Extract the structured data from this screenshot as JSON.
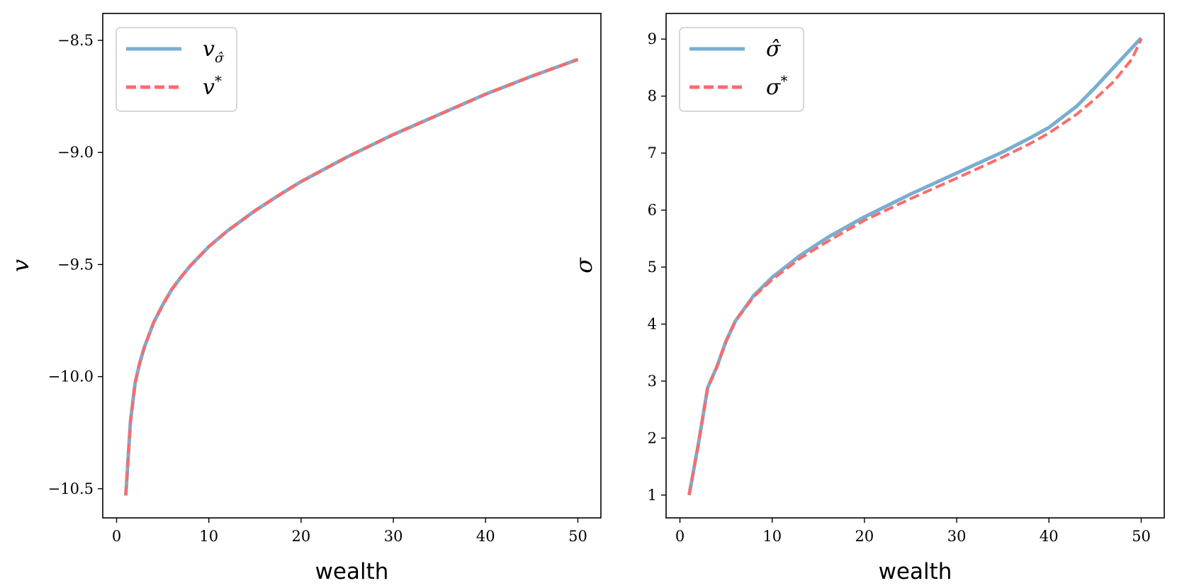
{
  "colors": {
    "approx": "#7aaed0",
    "exact": "#ff6a6a",
    "axis": "#000000",
    "legend_border": "#cccccc"
  },
  "chart_data": [
    {
      "type": "line",
      "xlabel": "wealth",
      "ylabel": "v",
      "xlim": [
        -1.5,
        52.5
      ],
      "ylim": [
        -10.63,
        -8.38
      ],
      "xticks": [
        0,
        10,
        20,
        30,
        40,
        50
      ],
      "yticks": [
        -10.5,
        -10.0,
        -9.5,
        -9.0,
        -8.5
      ],
      "ytick_labels": [
        "−10.5",
        "−10.0",
        "−9.5",
        "−9.0",
        "−8.5"
      ],
      "grid": false,
      "legend_position": "upper left",
      "series": [
        {
          "name": "v_σ̂",
          "legend_main": "v",
          "legend_sub": "σ̂",
          "style": "solid",
          "color": "#7aaed0",
          "x": [
            1,
            1.5,
            2,
            2.5,
            3,
            4,
            5,
            6,
            7,
            8,
            10,
            12,
            15,
            18,
            20,
            25,
            30,
            35,
            40,
            45,
            50
          ],
          "y": [
            -10.53,
            -10.2,
            -10.03,
            -9.94,
            -9.87,
            -9.76,
            -9.68,
            -9.61,
            -9.555,
            -9.505,
            -9.42,
            -9.35,
            -9.26,
            -9.18,
            -9.13,
            -9.02,
            -8.92,
            -8.83,
            -8.74,
            -8.66,
            -8.585
          ]
        },
        {
          "name": "v*",
          "legend_main": "v",
          "legend_sub": "*",
          "style": "dashed",
          "color": "#ff6a6a",
          "x": [
            1,
            1.5,
            2,
            2.5,
            3,
            4,
            5,
            6,
            7,
            8,
            10,
            12,
            15,
            18,
            20,
            25,
            30,
            35,
            40,
            45,
            50
          ],
          "y": [
            -10.53,
            -10.2,
            -10.03,
            -9.94,
            -9.87,
            -9.76,
            -9.68,
            -9.61,
            -9.555,
            -9.505,
            -9.42,
            -9.35,
            -9.26,
            -9.18,
            -9.13,
            -9.02,
            -8.92,
            -8.83,
            -8.74,
            -8.66,
            -8.585
          ]
        }
      ]
    },
    {
      "type": "line",
      "xlabel": "wealth",
      "ylabel": "σ",
      "xlim": [
        -1.5,
        52.5
      ],
      "ylim": [
        0.6,
        9.45
      ],
      "xticks": [
        0,
        10,
        20,
        30,
        40,
        50
      ],
      "yticks": [
        1,
        2,
        3,
        4,
        5,
        6,
        7,
        8,
        9
      ],
      "ytick_labels": [
        "1",
        "2",
        "3",
        "4",
        "5",
        "6",
        "7",
        "8",
        "9"
      ],
      "grid": false,
      "legend_position": "upper left",
      "series": [
        {
          "name": "σ̂",
          "legend_main": "σ̂",
          "legend_sub": "",
          "style": "solid",
          "color": "#7aaed0",
          "x": [
            1,
            2,
            3,
            4,
            5,
            6,
            8,
            10,
            13,
            16,
            20,
            25,
            30,
            35,
            38,
            40,
            43,
            45,
            47,
            50
          ],
          "y": [
            1.0,
            1.9,
            2.88,
            3.25,
            3.7,
            4.05,
            4.5,
            4.82,
            5.2,
            5.52,
            5.88,
            6.28,
            6.65,
            7.02,
            7.27,
            7.45,
            7.82,
            8.15,
            8.5,
            9.02
          ]
        },
        {
          "name": "σ*",
          "legend_main": "σ",
          "legend_sub": "*",
          "style": "dashed",
          "color": "#ff6a6a",
          "x": [
            1,
            2,
            3,
            4,
            5,
            6,
            8,
            10,
            13,
            16,
            20,
            25,
            30,
            35,
            38,
            40,
            43,
            45,
            47,
            49,
            50
          ],
          "y": [
            1.0,
            1.9,
            2.88,
            3.25,
            3.7,
            4.05,
            4.48,
            4.78,
            5.15,
            5.45,
            5.82,
            6.2,
            6.56,
            6.93,
            7.17,
            7.35,
            7.68,
            7.95,
            8.25,
            8.65,
            9.0
          ]
        }
      ]
    }
  ]
}
